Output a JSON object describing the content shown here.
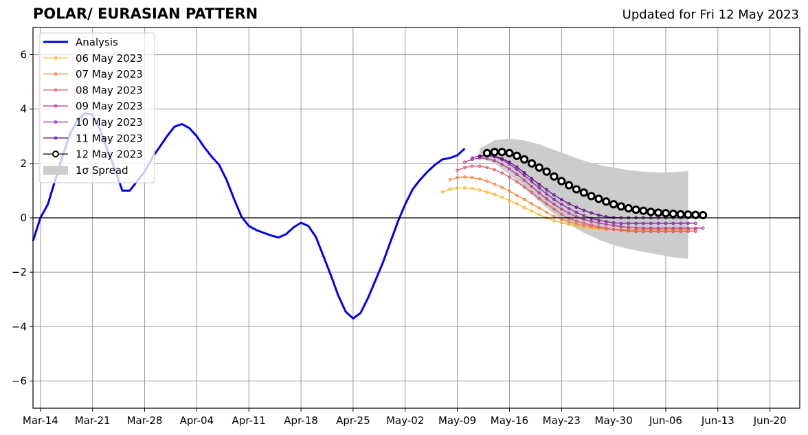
{
  "chart_data": {
    "type": "line",
    "title": "POLAR/ EURASIAN  PATTERN",
    "subtitle": "Updated for Fri 12 May 2023",
    "xlabel": "",
    "ylabel": "",
    "ylim": [
      -7,
      7
    ],
    "xlim": [
      "2023-03-13",
      "2023-06-24"
    ],
    "grid": true,
    "legend_position": "top-left",
    "x_ticks": [
      "Mar-14",
      "Mar-21",
      "Mar-28",
      "Apr-04",
      "Apr-11",
      "Apr-18",
      "Apr-25",
      "May-02",
      "May-09",
      "May-16",
      "May-23",
      "May-30",
      "Jun-06",
      "Jun-13",
      "Jun-20"
    ],
    "y_ticks": [
      6,
      4,
      2,
      0,
      -2,
      -4,
      -6
    ],
    "colors": {
      "analysis": "#0000ee",
      "spread": "#cccccc",
      "f0506": "#fbb52d",
      "f0507": "#f3843c",
      "f0508": "#df5a68",
      "f0509": "#b4378f",
      "f0510": "#8a1da3",
      "f0511": "#5a0e8a",
      "f0512": "#000000"
    },
    "analysis": {
      "name": "Analysis",
      "x": [
        "2023-03-13",
        "2023-03-14",
        "2023-03-15",
        "2023-03-16",
        "2023-03-17",
        "2023-03-18",
        "2023-03-19",
        "2023-03-20",
        "2023-03-21",
        "2023-03-22",
        "2023-03-23",
        "2023-03-24",
        "2023-03-25",
        "2023-03-26",
        "2023-03-27",
        "2023-03-28",
        "2023-03-29",
        "2023-03-30",
        "2023-03-31",
        "2023-04-01",
        "2023-04-02",
        "2023-04-03",
        "2023-04-04",
        "2023-04-05",
        "2023-04-06",
        "2023-04-07",
        "2023-04-08",
        "2023-04-09",
        "2023-04-10",
        "2023-04-11",
        "2023-04-12",
        "2023-04-13",
        "2023-04-14",
        "2023-04-15",
        "2023-04-16",
        "2023-04-17",
        "2023-04-18",
        "2023-04-19",
        "2023-04-20",
        "2023-04-21",
        "2023-04-22",
        "2023-04-23",
        "2023-04-24",
        "2023-04-25",
        "2023-04-26",
        "2023-04-27",
        "2023-04-28",
        "2023-04-29",
        "2023-04-30",
        "2023-05-01",
        "2023-05-02",
        "2023-05-03",
        "2023-05-04",
        "2023-05-05",
        "2023-05-06",
        "2023-05-07",
        "2023-05-08",
        "2023-05-09",
        "2023-05-10",
        "2023-05-11",
        "2023-05-12"
      ],
      "y": [
        -0.85,
        0.0,
        0.5,
        1.4,
        2.3,
        3.1,
        3.6,
        3.85,
        3.8,
        3.25,
        2.5,
        1.8,
        1.0,
        1.0,
        1.35,
        1.7,
        2.2,
        2.6,
        3.0,
        3.35,
        3.45,
        3.3,
        3.0,
        2.6,
        2.25,
        1.95,
        1.4,
        0.7,
        0.05,
        -0.3,
        -0.45,
        -0.55,
        -0.65,
        -0.72,
        -0.6,
        -0.35,
        -0.18,
        -0.3,
        -0.7,
        -1.4,
        -2.1,
        -2.85,
        -3.45,
        -3.7,
        -3.5,
        -2.95,
        -2.3,
        -1.65,
        -0.9,
        -0.15,
        0.5,
        1.05,
        1.4,
        1.7,
        1.95,
        2.15,
        2.2,
        2.3,
        2.55,
        null,
        null
      ]
    },
    "spread": {
      "name": "1σ Spread",
      "x": [
        "2023-05-12",
        "2023-05-14",
        "2023-05-16",
        "2023-05-18",
        "2023-05-20",
        "2023-05-22",
        "2023-05-24",
        "2023-05-26",
        "2023-05-28",
        "2023-05-30",
        "2023-06-01",
        "2023-06-03",
        "2023-06-05",
        "2023-06-07",
        "2023-06-09"
      ],
      "upper": [
        2.55,
        2.85,
        2.92,
        2.85,
        2.7,
        2.5,
        2.3,
        2.1,
        1.95,
        1.85,
        1.75,
        1.7,
        1.67,
        1.68,
        1.72
      ],
      "lower": [
        2.2,
        2.0,
        1.6,
        1.1,
        0.6,
        0.15,
        -0.25,
        -0.55,
        -0.8,
        -1.0,
        -1.15,
        -1.25,
        -1.35,
        -1.45,
        -1.5
      ]
    },
    "series": [
      {
        "name": "06 May 2023",
        "x_start": "2023-05-07",
        "values": [
          0.95,
          1.05,
          1.1,
          1.1,
          1.08,
          1.02,
          0.95,
          0.86,
          0.76,
          0.64,
          0.52,
          0.38,
          0.25,
          0.12,
          0.0,
          -0.1,
          -0.18,
          -0.25,
          -0.3,
          -0.35,
          -0.38,
          -0.4,
          -0.42,
          -0.42,
          -0.42,
          -0.42,
          -0.42,
          -0.42,
          -0.42,
          -0.42,
          -0.42,
          -0.42,
          -0.42,
          -0.42
        ]
      },
      {
        "name": "07 May 2023",
        "x_start": "2023-05-08",
        "values": [
          1.4,
          1.48,
          1.5,
          1.48,
          1.43,
          1.35,
          1.24,
          1.12,
          0.98,
          0.83,
          0.68,
          0.52,
          0.36,
          0.2,
          0.05,
          -0.06,
          -0.15,
          -0.22,
          -0.28,
          -0.33,
          -0.37,
          -0.4,
          -0.42,
          -0.43,
          -0.44,
          -0.45,
          -0.45,
          -0.45,
          -0.45,
          -0.45,
          -0.45,
          -0.45,
          -0.45,
          -0.45
        ]
      },
      {
        "name": "08 May 2023",
        "x_start": "2023-05-09",
        "values": [
          1.75,
          1.85,
          1.9,
          1.9,
          1.85,
          1.77,
          1.65,
          1.5,
          1.32,
          1.13,
          0.93,
          0.72,
          0.52,
          0.32,
          0.13,
          -0.02,
          -0.12,
          -0.2,
          -0.27,
          -0.33,
          -0.38,
          -0.43,
          -0.46,
          -0.48,
          -0.5,
          -0.5,
          -0.5,
          -0.5,
          -0.5,
          -0.5,
          -0.5,
          -0.5,
          -0.5
        ]
      },
      {
        "name": "09 May 2023",
        "x_start": "2023-05-10",
        "values": [
          2.05,
          2.15,
          2.2,
          2.18,
          2.1,
          1.97,
          1.8,
          1.6,
          1.38,
          1.15,
          0.92,
          0.7,
          0.5,
          0.32,
          0.17,
          0.04,
          -0.06,
          -0.13,
          -0.19,
          -0.24,
          -0.28,
          -0.32,
          -0.35,
          -0.37,
          -0.38,
          -0.38,
          -0.38,
          -0.38,
          -0.38,
          -0.38,
          -0.38,
          -0.38,
          -0.38
        ]
      },
      {
        "name": "10 May 2023",
        "x_start": "2023-05-11",
        "values": [
          2.2,
          2.28,
          2.3,
          2.25,
          2.14,
          1.98,
          1.78,
          1.56,
          1.33,
          1.1,
          0.88,
          0.68,
          0.5,
          0.34,
          0.2,
          0.08,
          -0.02,
          -0.09,
          -0.14,
          -0.18,
          -0.2,
          -0.2,
          -0.2,
          -0.2,
          -0.2,
          -0.2,
          -0.2,
          -0.2,
          -0.2,
          -0.2,
          -0.2
        ]
      },
      {
        "name": "11 May 2023",
        "x_start": "2023-05-12",
        "values": [
          2.25,
          2.3,
          2.27,
          2.18,
          2.05,
          1.87,
          1.66,
          1.44,
          1.23,
          1.03,
          0.84,
          0.67,
          0.52,
          0.39,
          0.28,
          0.18,
          0.1,
          0.04,
          0.01,
          0.0,
          0.0,
          0.0,
          0.0,
          0.0,
          0.0,
          0.0,
          0.0,
          0.0,
          0.0,
          0.0
        ]
      },
      {
        "name": "12 May 2023",
        "x_start": "2023-05-13",
        "values": [
          2.38,
          2.42,
          2.42,
          2.38,
          2.28,
          2.15,
          2.0,
          1.85,
          1.7,
          1.52,
          1.35,
          1.2,
          1.05,
          0.93,
          0.8,
          0.7,
          0.6,
          0.5,
          0.42,
          0.35,
          0.3,
          0.26,
          0.22,
          0.19,
          0.17,
          0.15,
          0.13,
          0.12,
          0.11,
          0.1
        ]
      }
    ]
  }
}
